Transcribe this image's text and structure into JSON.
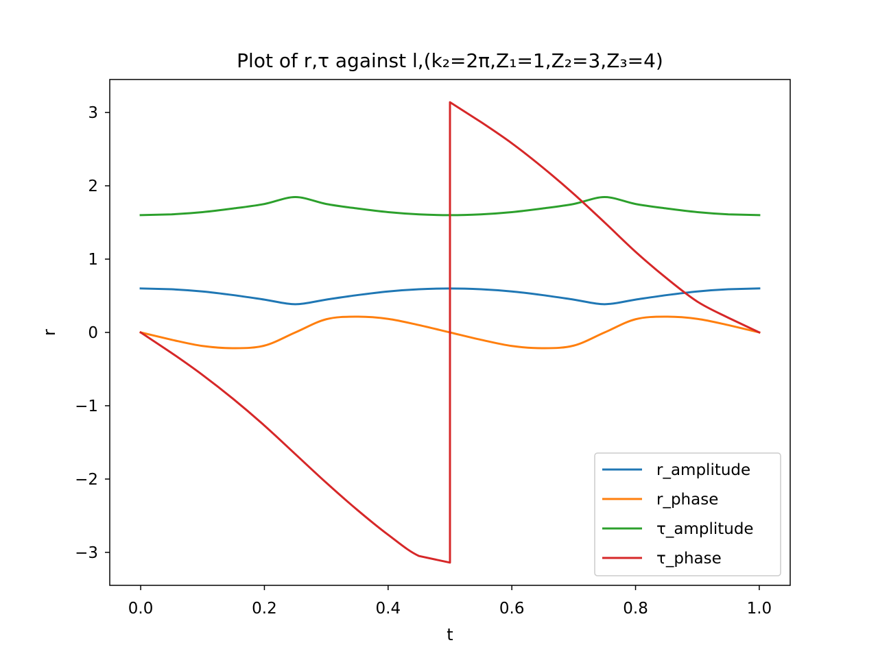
{
  "chart_data": {
    "type": "line",
    "title": "Plot of r,τ against l,(k₂=2π,Z₁=1,Z₂=3,Z₃=4)",
    "xlabel": "t",
    "ylabel": "r",
    "xlim": [
      -0.05,
      1.05
    ],
    "ylim": [
      -3.45,
      3.45
    ],
    "xticks": [
      0.0,
      0.2,
      0.4,
      0.6,
      0.8,
      1.0
    ],
    "xtick_labels": [
      "0.0",
      "0.2",
      "0.4",
      "0.6",
      "0.8",
      "1.0"
    ],
    "yticks": [
      -3,
      -2,
      -1,
      0,
      1,
      2,
      3
    ],
    "ytick_labels": [
      "−3",
      "−2",
      "−1",
      "0",
      "1",
      "2",
      "3"
    ],
    "grid": false,
    "legend_position": "bottom-right",
    "series": [
      {
        "name": "r_amplitude",
        "color": "#1f77b4",
        "x": [
          0.0,
          0.05,
          0.1,
          0.15,
          0.2,
          0.25,
          0.3,
          0.35,
          0.4,
          0.45,
          0.5,
          0.55,
          0.6,
          0.65,
          0.7,
          0.75,
          0.8,
          0.85,
          0.9,
          0.95,
          1.0
        ],
        "y": [
          0.6,
          0.589,
          0.559,
          0.509,
          0.448,
          0.385,
          0.448,
          0.509,
          0.559,
          0.589,
          0.6,
          0.589,
          0.559,
          0.509,
          0.448,
          0.385,
          0.448,
          0.509,
          0.559,
          0.589,
          0.6
        ]
      },
      {
        "name": "r_phase",
        "color": "#ff7f0e",
        "x": [
          0.0,
          0.05,
          0.1,
          0.15,
          0.2,
          0.25,
          0.3,
          0.35,
          0.4,
          0.45,
          0.5,
          0.55,
          0.6,
          0.65,
          0.7,
          0.75,
          0.8,
          0.85,
          0.9,
          0.95,
          1.0
        ],
        "y": [
          0.0,
          -0.1,
          -0.185,
          -0.215,
          -0.18,
          0.0,
          0.18,
          0.215,
          0.185,
          0.1,
          0.0,
          -0.1,
          -0.185,
          -0.215,
          -0.18,
          0.0,
          0.18,
          0.215,
          0.185,
          0.1,
          0.0
        ]
      },
      {
        "name": "τ_amplitude",
        "color": "#2ca02c",
        "x": [
          0.0,
          0.05,
          0.1,
          0.15,
          0.2,
          0.25,
          0.3,
          0.35,
          0.4,
          0.45,
          0.5,
          0.55,
          0.6,
          0.65,
          0.7,
          0.75,
          0.8,
          0.85,
          0.9,
          0.95,
          1.0
        ],
        "y": [
          1.6,
          1.611,
          1.641,
          1.691,
          1.752,
          1.846,
          1.752,
          1.691,
          1.641,
          1.611,
          1.6,
          1.611,
          1.641,
          1.691,
          1.752,
          1.846,
          1.752,
          1.691,
          1.641,
          1.611,
          1.6
        ]
      },
      {
        "name": "τ_phase",
        "color": "#d62728",
        "x": [
          0.0,
          0.05,
          0.1,
          0.15,
          0.2,
          0.25,
          0.3,
          0.35,
          0.4,
          0.45,
          0.5,
          0.5,
          0.55,
          0.6,
          0.65,
          0.7,
          0.75,
          0.8,
          0.85,
          0.9,
          0.95,
          1.0
        ],
        "y": [
          0.0,
          -0.28,
          -0.58,
          -0.91,
          -1.27,
          -1.66,
          -2.05,
          -2.42,
          -2.76,
          -3.05,
          -3.14,
          3.14,
          2.87,
          2.58,
          2.25,
          1.89,
          1.5,
          1.1,
          0.74,
          0.42,
          0.2,
          0.0
        ]
      }
    ]
  }
}
